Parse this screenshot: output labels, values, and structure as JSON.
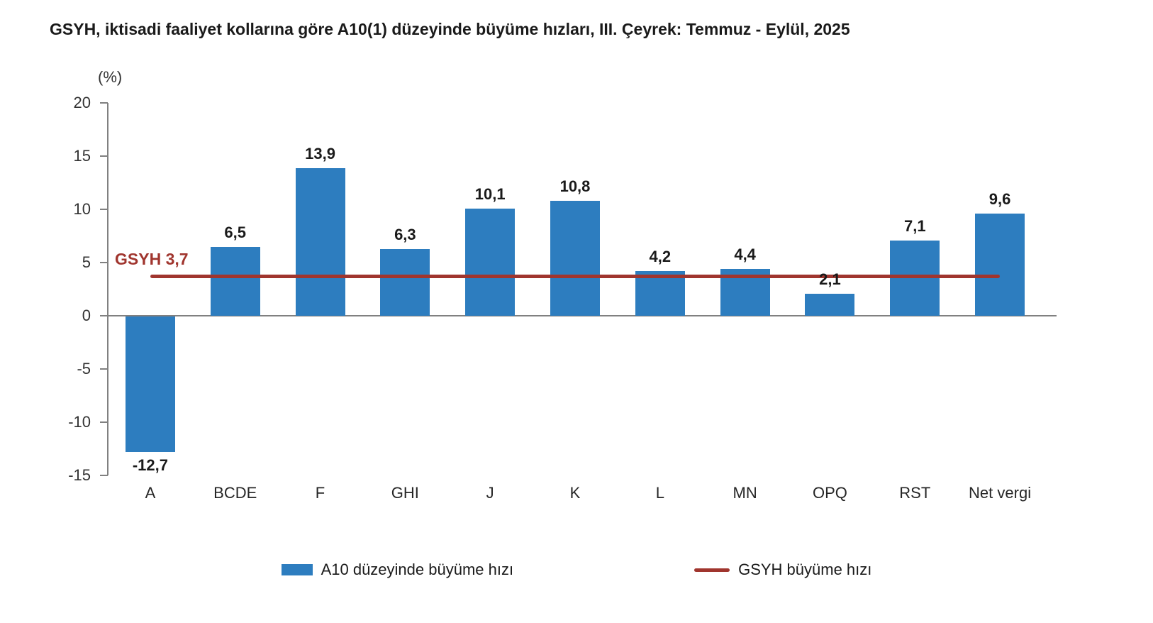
{
  "title": "GSYH, iktisadi faaliyet kollarına göre A10(1) düzeyinde büyüme hızları, III. Çeyrek: Temmuz - Eylül, 2025",
  "chart_data": {
    "type": "bar",
    "categories": [
      "A",
      "BCDE",
      "F",
      "GHI",
      "J",
      "K",
      "L",
      "MN",
      "OPQ",
      "RST",
      "Net vergi"
    ],
    "series": [
      {
        "name": "A10 düzeyinde büyüme hızı",
        "type": "bar",
        "values": [
          -12.7,
          6.5,
          13.9,
          6.3,
          10.1,
          10.8,
          4.2,
          4.4,
          2.1,
          7.1,
          9.6
        ]
      },
      {
        "name": "GSYH büyüme hızı",
        "type": "line",
        "values": [
          3.7,
          3.7,
          3.7,
          3.7,
          3.7,
          3.7,
          3.7,
          3.7,
          3.7,
          3.7,
          3.7
        ]
      }
    ],
    "value_labels": [
      "-12,7",
      "6,5",
      "13,9",
      "6,3",
      "10,1",
      "10,8",
      "4,2",
      "4,4",
      "2,1",
      "7,1",
      "9,6"
    ],
    "gsyh_value": 3.7,
    "gsyh_annotation": "GSYH 3,7",
    "ylabel": "(%)",
    "yticks": [
      20,
      15,
      10,
      5,
      0,
      -5,
      -10,
      -15
    ],
    "ylim": [
      -15,
      20
    ],
    "grid": false,
    "legend_position": "bottom"
  },
  "legend": {
    "bar_label": "A10 düzeyinde büyüme hızı",
    "line_label": "GSYH büyüme hızı"
  },
  "colors": {
    "bar": "#2d7dbf",
    "line": "#a0352e",
    "axis": "#808080"
  }
}
